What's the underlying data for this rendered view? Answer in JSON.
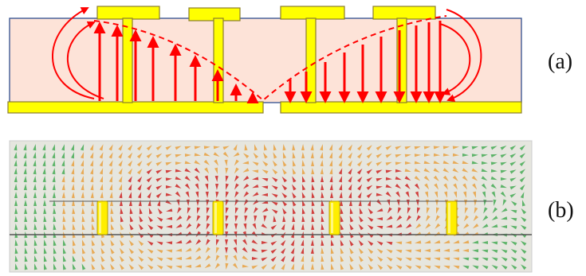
{
  "panels": [
    {
      "id": "a",
      "label": "(a)",
      "kind": "schematic-field-lines",
      "colors": {
        "substrate": "#fde3d8",
        "substrate_border": "#2f4f8f",
        "conductor": "#ffff00",
        "conductor_border": "#8a7d2c",
        "arrow": "#ff0000"
      },
      "top_conductor_count": 4,
      "bottom_plate_count": 2,
      "left_arrows": {
        "count": 9,
        "direction": "up"
      },
      "right_arrows": {
        "count": 10,
        "direction": "down"
      }
    },
    {
      "id": "b",
      "label": "(b)",
      "kind": "simulated-vector-field",
      "colors": {
        "background": "#e6e6df",
        "strong_field": "#cc2222",
        "medium_field": "#e8a040",
        "weak_field": "#44aa55",
        "via": "#ffee00",
        "trace_line": "#555555"
      },
      "via_count": 4
    }
  ]
}
